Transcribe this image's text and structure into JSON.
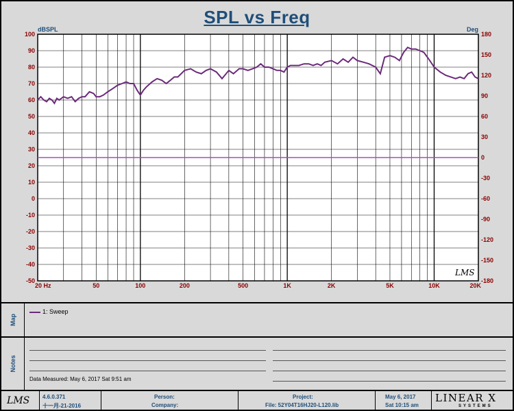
{
  "title": "SPL vs Freq",
  "colors": {
    "curve": "#6b2a7a",
    "zero_line": "#a050b0",
    "axis_text": "#8b0000",
    "grid": "#000000"
  },
  "chart_data": {
    "type": "line",
    "title": "SPL vs Freq",
    "ylabel_left": "dBSPL",
    "ylabel_right": "Deg",
    "x_scale": "log",
    "xlim": [
      20,
      20000
    ],
    "ylim": [
      -50,
      100
    ],
    "ylim_right": [
      -180,
      180
    ],
    "x_tick_labels": [
      {
        "value": 20,
        "label": "20 Hz"
      },
      {
        "value": 50,
        "label": "50"
      },
      {
        "value": 100,
        "label": "100"
      },
      {
        "value": 200,
        "label": "200"
      },
      {
        "value": 500,
        "label": "500"
      },
      {
        "value": 1000,
        "label": "1K"
      },
      {
        "value": 2000,
        "label": "2K"
      },
      {
        "value": 5000,
        "label": "5K"
      },
      {
        "value": 10000,
        "label": "10K"
      },
      {
        "value": 20000,
        "label": "20K"
      }
    ],
    "y_ticks_left": [
      100,
      90,
      80,
      70,
      60,
      50,
      40,
      30,
      20,
      10,
      0,
      -10,
      -20,
      -30,
      -40,
      -50
    ],
    "y_ticks_right": [
      180,
      150,
      120,
      90,
      60,
      30,
      0,
      -30,
      -60,
      -90,
      -120,
      -150,
      -180
    ],
    "grid": true,
    "series": [
      {
        "name": "1: Sweep",
        "x": [
          20,
          21,
          22,
          23,
          24,
          25,
          26,
          27,
          28,
          30,
          32,
          34,
          36,
          38,
          40,
          42,
          45,
          48,
          50,
          53,
          56,
          60,
          65,
          70,
          75,
          80,
          85,
          90,
          95,
          100,
          105,
          110,
          120,
          130,
          140,
          150,
          160,
          170,
          180,
          200,
          220,
          240,
          260,
          280,
          300,
          330,
          360,
          400,
          430,
          470,
          500,
          540,
          580,
          620,
          660,
          700,
          750,
          800,
          850,
          900,
          950,
          1000,
          1050,
          1100,
          1200,
          1300,
          1400,
          1500,
          1600,
          1700,
          1800,
          2000,
          2200,
          2400,
          2600,
          2800,
          3000,
          3300,
          3600,
          4000,
          4300,
          4600,
          5000,
          5400,
          5800,
          6200,
          6600,
          7000,
          7500,
          8000,
          8500,
          9000,
          9500,
          10000,
          11000,
          12000,
          13000,
          14000,
          15000,
          16000,
          17000,
          18000,
          19000,
          20000
        ],
        "values": [
          60,
          62,
          60,
          59,
          61,
          60,
          58,
          61,
          60,
          62,
          61,
          62,
          59,
          61,
          62,
          62,
          65,
          64,
          62,
          62,
          63,
          65,
          67,
          69,
          70,
          71,
          70,
          70,
          66,
          63,
          66,
          68,
          71,
          73,
          72,
          70,
          72,
          74,
          74,
          78,
          79,
          77,
          76,
          78,
          79,
          77,
          73,
          78,
          76,
          79,
          79,
          78,
          79,
          80,
          82,
          80,
          80,
          79,
          78,
          78,
          77,
          80,
          81,
          81,
          81,
          82,
          82,
          81,
          82,
          81,
          83,
          84,
          82,
          85,
          83,
          86,
          84,
          83,
          82,
          80,
          76,
          86,
          87,
          86,
          84,
          89,
          92,
          91,
          91,
          90,
          89,
          86,
          83,
          80,
          77,
          75,
          74,
          73,
          74,
          73,
          76,
          77,
          74,
          73
        ]
      }
    ],
    "zero_phase_line": 0
  },
  "lms_watermark": "LMS",
  "map_panel": {
    "label": "Map",
    "legend": "1: Sweep"
  },
  "notes_panel": {
    "label": "Notes",
    "data_measured": "Data Measured: May  6, 2017  Sat  9:51 am"
  },
  "footer": {
    "logo": "LMS",
    "version": "4.6.0.371",
    "build_date": "十一月-21-2016",
    "person_label": "Person:",
    "company_label": "Company:",
    "project_label": "Project:",
    "file": "File: 52Y04T16HJ20-L120.lib",
    "date": "May  6, 2017",
    "time": "Sat 10:15 am",
    "brand": "LINEAR X",
    "brand_sub": "SYSTEMS"
  }
}
